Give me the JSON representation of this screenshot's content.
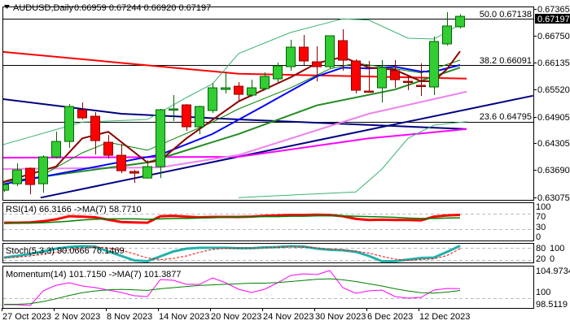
{
  "header": {
    "symbol": "AUDUSD,Daily",
    "ohlc": "0.66959 0.67244 0.66920 0.67197"
  },
  "price_axis": {
    "ticks": [
      "0.67365",
      "0.66750",
      "0.66135",
      "0.65520",
      "0.64905",
      "0.64305",
      "0.63690",
      "0.63075"
    ],
    "current_price": "0.67197"
  },
  "fib_levels": [
    {
      "label": "50.0 0.67138",
      "price": 0.67138
    },
    {
      "label": "38.2 0.66091",
      "price": 0.66091
    },
    {
      "label": "23.6 0.64795",
      "price": 0.64795
    }
  ],
  "date_axis": [
    "27 Oct 2023",
    "2 Nov 2023",
    "8 Nov 2023",
    "14 Nov 2023",
    "20 Nov 2023",
    "24 Nov 2023",
    "30 Nov 2023",
    "6 Dec 2023",
    "12 Dec 2023"
  ],
  "indicators": {
    "rsi": {
      "label": "RSI(14) 66.3166  ->MA(7) 58.7710",
      "ticks": [
        "100",
        "70",
        "30",
        "0"
      ]
    },
    "stoch": {
      "label": "Stoch(5,3,3) 90.0666 76.1469",
      "ticks": [
        "80",
        "100",
        "20",
        "0"
      ]
    },
    "momentum": {
      "label": "Momentum(14) 101.7150  ->MA(7) 101.3877",
      "ticks": [
        "104.9734",
        "100",
        "98.5119"
      ]
    }
  },
  "colors": {
    "bull": "#32cd32",
    "bull_border": "#006400",
    "bear": "#ff0000",
    "bear_border": "#8b0000"
  },
  "chart_data": [
    {
      "type": "candlestick",
      "title": "AUDUSD,Daily",
      "ylim": [
        0.63075,
        0.67365
      ],
      "date_ticks_every": 4,
      "candles": [
        [
          0.6324,
          0.63406,
          0.632,
          0.63369
        ],
        [
          0.63387,
          0.6385,
          0.63332,
          0.63702
        ],
        [
          0.63739,
          0.63757,
          0.63147,
          0.63369
        ],
        [
          0.63387,
          0.64035,
          0.63184,
          0.63998
        ],
        [
          0.63998,
          0.64571,
          0.63961,
          0.64349
        ],
        [
          0.64349,
          0.652,
          0.64201,
          0.65145
        ],
        [
          0.65071,
          0.65237,
          0.64849,
          0.64886
        ],
        [
          0.64923,
          0.65016,
          0.64053,
          0.64368
        ],
        [
          0.64331,
          0.64497,
          0.63961,
          0.64035
        ],
        [
          0.64035,
          0.64294,
          0.63628,
          0.63683
        ],
        [
          0.63665,
          0.63702,
          0.63406,
          0.63628
        ],
        [
          0.63517,
          0.63924,
          0.63517,
          0.63776
        ],
        [
          0.63776,
          0.6509,
          0.63517,
          0.65071
        ],
        [
          0.65071,
          0.65404,
          0.64812,
          0.6509
        ],
        [
          0.65182,
          0.652,
          0.6459,
          0.64683
        ],
        [
          0.64683,
          0.65163,
          0.64516,
          0.65145
        ],
        [
          0.65053,
          0.65681,
          0.64997,
          0.6557
        ],
        [
          0.65533,
          0.65922,
          0.65441,
          0.6557
        ],
        [
          0.65607,
          0.657,
          0.65274,
          0.65422
        ],
        [
          0.65404,
          0.65755,
          0.65367,
          0.6557
        ],
        [
          0.65552,
          0.65922,
          0.65533,
          0.6583
        ],
        [
          0.65774,
          0.66144,
          0.657,
          0.6607
        ],
        [
          0.66051,
          0.66662,
          0.65959,
          0.66495
        ],
        [
          0.66495,
          0.66773,
          0.66088,
          0.66181
        ],
        [
          0.66162,
          0.66514,
          0.65718,
          0.66051
        ],
        [
          0.66051,
          0.66755,
          0.66014,
          0.66755
        ],
        [
          0.66644,
          0.66903,
          0.65959,
          0.66199
        ],
        [
          0.66181,
          0.66218,
          0.65441,
          0.65515
        ],
        [
          0.65496,
          0.66181,
          0.65478,
          0.65478
        ],
        [
          0.6557,
          0.66199,
          0.65237,
          0.66033
        ],
        [
          0.65959,
          0.66199,
          0.6557,
          0.65755
        ],
        [
          0.65718,
          0.6583,
          0.65515,
          0.657
        ],
        [
          0.65626,
          0.66125,
          0.65385,
          0.65607
        ],
        [
          0.65589,
          0.66736,
          0.65404,
          0.66625
        ],
        [
          0.6657,
          0.67291,
          0.66532,
          0.66977
        ],
        [
          0.66959,
          0.67244,
          0.6692,
          0.67197
        ]
      ],
      "overlays": [
        {
          "name": "ma-red",
          "color": "#ff0000",
          "width": 2,
          "points": [
            [
              -0.5,
              0.664
            ],
            [
              18,
              0.6589
            ],
            [
              35.5,
              0.6578
            ]
          ]
        },
        {
          "name": "ma-navy",
          "color": "#000080",
          "width": 2,
          "points": [
            [
              -0.5,
              0.6533
            ],
            [
              9,
              0.6498
            ],
            [
              18,
              0.6485
            ],
            [
              35.5,
              0.6463
            ]
          ]
        },
        {
          "name": "trendline",
          "color": "#000080",
          "width": 2,
          "points": [
            [
              2.8,
              0.6307
            ],
            [
              40.6,
              0.6539
            ]
          ]
        },
        {
          "name": "ma-magenta",
          "color": "#ff00ff",
          "width": 2,
          "points": [
            [
              -0.5,
              0.6398
            ],
            [
              18,
              0.64
            ],
            [
              28,
              0.6442
            ],
            [
              35.5,
              0.6463
            ]
          ]
        },
        {
          "name": "ma-violet",
          "color": "#ee82ee",
          "width": 2,
          "points": [
            [
              -0.5,
              0.6372
            ],
            [
              12,
              0.6376
            ],
            [
              18,
              0.6404
            ],
            [
              28,
              0.6498
            ],
            [
              35.5,
              0.6548
            ]
          ]
        },
        {
          "name": "bollinger-upper",
          "color": "#3cb371",
          "width": 1,
          "points": [
            [
              -0.5,
              0.6424
            ],
            [
              6,
              0.6479
            ],
            [
              11,
              0.6485
            ],
            [
              14,
              0.6535
            ],
            [
              16,
              0.6566
            ],
            [
              18,
              0.6635
            ],
            [
              22,
              0.6683
            ],
            [
              26,
              0.6714
            ],
            [
              28,
              0.6711
            ],
            [
              31,
              0.667
            ],
            [
              33,
              0.6668
            ],
            [
              35,
              0.6701
            ]
          ]
        },
        {
          "name": "bollinger-middle",
          "color": "#008000",
          "width": 1,
          "points": [
            [
              3,
              0.6359
            ],
            [
              6,
              0.6409
            ],
            [
              8,
              0.6433
            ],
            [
              11,
              0.6415
            ],
            [
              16,
              0.6479
            ],
            [
              18,
              0.6509
            ],
            [
              22,
              0.6557
            ],
            [
              25,
              0.66
            ],
            [
              27,
              0.6613
            ],
            [
              29,
              0.6605
            ],
            [
              32,
              0.6591
            ],
            [
              35,
              0.662
            ]
          ]
        },
        {
          "name": "bollinger-lower",
          "color": "#3cb371",
          "width": 1,
          "points": [
            [
              18,
              0.6307
            ],
            [
              27,
              0.632
            ],
            [
              29,
              0.6372
            ],
            [
              31,
              0.6442
            ],
            [
              33,
              0.6472
            ],
            [
              35.5,
              0.648
            ]
          ]
        },
        {
          "name": "ema-green",
          "color": "#228b22",
          "width": 2,
          "points": [
            [
              -0.5,
              0.6341
            ],
            [
              11,
              0.6387
            ],
            [
              18,
              0.6452
            ],
            [
              24,
              0.6517
            ],
            [
              30,
              0.6553
            ],
            [
              35,
              0.6603
            ]
          ]
        },
        {
          "name": "ema-blue",
          "color": "#0000ff",
          "width": 2,
          "points": [
            [
              -0.5,
              0.6335
            ],
            [
              10,
              0.6394
            ],
            [
              12,
              0.6405
            ],
            [
              16,
              0.6452
            ],
            [
              20,
              0.6517
            ],
            [
              24,
              0.6583
            ],
            [
              26,
              0.6603
            ],
            [
              28,
              0.6601
            ],
            [
              30,
              0.6605
            ],
            [
              32,
              0.6594
            ],
            [
              33,
              0.6594
            ],
            [
              35,
              0.6609
            ]
          ]
        },
        {
          "name": "ema-darkred",
          "color": "#8b0000",
          "width": 2,
          "points": [
            [
              -0.5,
              0.6339
            ],
            [
              4,
              0.6378
            ],
            [
              6,
              0.6442
            ],
            [
              8,
              0.6457
            ],
            [
              11,
              0.6387
            ],
            [
              12,
              0.6392
            ],
            [
              14,
              0.6442
            ],
            [
              18,
              0.6526
            ],
            [
              22,
              0.6581
            ],
            [
              24,
              0.6613
            ],
            [
              26,
              0.6627
            ],
            [
              28,
              0.6603
            ],
            [
              30,
              0.6598
            ],
            [
              32,
              0.6572
            ],
            [
              33,
              0.6572
            ],
            [
              34,
              0.66
            ],
            [
              35,
              0.664
            ]
          ]
        }
      ]
    },
    {
      "type": "line",
      "title": "RSI(14)",
      "ylim": [
        0,
        100
      ],
      "levels": [
        70,
        30
      ],
      "series": [
        {
          "name": "RSI",
          "color": "#ff0000",
          "values": [
            46,
            46,
            47,
            50,
            55,
            63,
            62,
            60,
            54,
            48,
            47,
            46,
            63,
            64,
            62,
            60,
            61,
            61,
            61,
            62,
            64,
            65,
            66,
            66,
            67,
            66,
            63,
            56,
            53,
            54,
            53,
            53,
            52,
            62,
            65,
            66.3166
          ]
        },
        {
          "name": "MA(7)",
          "color": "#008000",
          "values": [
            44,
            45,
            45,
            46,
            48,
            50,
            53,
            55,
            56,
            56,
            56,
            55,
            56,
            57,
            57,
            58,
            59,
            60,
            61,
            62,
            62,
            62,
            63,
            63,
            64,
            64,
            64,
            63,
            62,
            61,
            60,
            58,
            57,
            57,
            58,
            58.771
          ]
        }
      ]
    },
    {
      "type": "line",
      "title": "Stoch(5,3,3)",
      "ylim": [
        0,
        100
      ],
      "levels": [
        80,
        20
      ],
      "series": [
        {
          "name": "Main",
          "color": "#20b2aa",
          "values": [
            32,
            40,
            50,
            62,
            76,
            84,
            88,
            86,
            62,
            40,
            18,
            14,
            38,
            62,
            76,
            80,
            80,
            80,
            78,
            78,
            82,
            84,
            88,
            86,
            76,
            70,
            68,
            60,
            40,
            14,
            14,
            22,
            30,
            32,
            60,
            90.0666
          ]
        },
        {
          "name": "Signal",
          "color": "#ff0000",
          "values": [
            30,
            34,
            40,
            48,
            58,
            70,
            78,
            84,
            80,
            68,
            50,
            30,
            22,
            28,
            40,
            58,
            72,
            78,
            79,
            79,
            80,
            82,
            84,
            83,
            80,
            74,
            70,
            64,
            54,
            38,
            24,
            18,
            22,
            26,
            42,
            76.1469
          ]
        }
      ]
    },
    {
      "type": "line",
      "title": "Momentum(14)",
      "ylim": [
        98.5119,
        104.9734
      ],
      "levels": [
        100
      ],
      "series": [
        {
          "name": "Momentum",
          "color": "#ff00ff",
          "values": [
            98.83,
            98.83,
            98.68,
            101.32,
            102.34,
            102.78,
            102.19,
            101.9,
            101.46,
            101.02,
            100.44,
            100.29,
            103.36,
            103.22,
            102.49,
            102.49,
            103.65,
            102.78,
            101.61,
            101.02,
            101.61,
            102.78,
            104.09,
            104.39,
            104.24,
            104.97,
            101.9,
            100.88,
            101.32,
            101.46,
            100.29,
            100.0,
            100.15,
            101.46,
            101.75,
            101.715
          ]
        },
        {
          "name": "MA(7)",
          "color": "#008000",
          "values": [
            98.9,
            98.9,
            99.0,
            99.4,
            99.9,
            100.5,
            101.0,
            101.3,
            101.5,
            101.6,
            101.5,
            101.4,
            101.7,
            101.9,
            102.1,
            102.3,
            102.4,
            102.5,
            102.6,
            102.7,
            102.7,
            102.8,
            103.0,
            103.2,
            103.4,
            103.5,
            103.3,
            103.0,
            102.6,
            102.2,
            101.7,
            101.3,
            101.0,
            100.9,
            101.1,
            101.3877
          ]
        }
      ]
    }
  ]
}
